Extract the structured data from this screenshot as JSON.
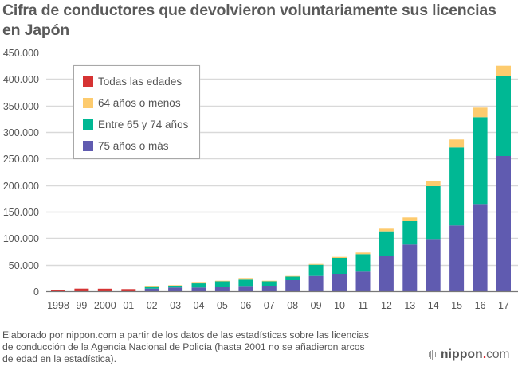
{
  "title": "Cifra de conductores que devolvieron voluntariamente sus licencias en Japón",
  "legend": [
    {
      "label": "Todas las edades",
      "color": "#d63333"
    },
    {
      "label": "64 años o menos",
      "color": "#fdcb6e"
    },
    {
      "label": "Entre 65 y 74 años",
      "color": "#00b894"
    },
    {
      "label": "75 años o más",
      "color": "#605bb0"
    }
  ],
  "source_note": "Elaborado por nippon.com a partir de los datos de las estadísticas sobre las licencias de conducción de la Agencia Nacional de Policía (hasta 2001 no se añadieron arcos de edad en la estadística).",
  "brand": {
    "name": "nippon",
    "dot": ".",
    "tld": "com"
  },
  "chart_data": {
    "type": "bar",
    "stacked": true,
    "title": "Cifra de conductores que devolvieron voluntariamente sus licencias en Japón",
    "xlabel": "",
    "ylabel": "",
    "ylim": [
      0,
      450000
    ],
    "yticks": [
      0,
      50000,
      100000,
      150000,
      200000,
      250000,
      300000,
      350000,
      400000,
      450000
    ],
    "ytick_labels": [
      "0",
      "50.000",
      "100.000",
      "150.000",
      "200.000",
      "250.000",
      "300.000",
      "350.000",
      "400.000",
      "450.000"
    ],
    "grid": true,
    "legend_position": "top-left",
    "categories": [
      "1998",
      "99",
      "2000",
      "01",
      "02",
      "03",
      "04",
      "05",
      "06",
      "07",
      "08",
      "09",
      "10",
      "11",
      "12",
      "13",
      "14",
      "15",
      "16",
      "17"
    ],
    "series": [
      {
        "name": "Todas las edades",
        "color": "#d63333",
        "values": [
          2600,
          5000,
          4800,
          4100,
          0,
          0,
          0,
          0,
          0,
          0,
          0,
          0,
          0,
          0,
          0,
          0,
          0,
          0,
          0,
          0
        ]
      },
      {
        "name": "75 años o más",
        "color": "#605bb0",
        "values": [
          0,
          0,
          0,
          0,
          5000,
          7000,
          7000,
          7500,
          8500,
          10000,
          21000,
          29000,
          33000,
          37000,
          66000,
          88000,
          97000,
          124000,
          163000,
          255000
        ]
      },
      {
        "name": "Entre 65 y 74 años",
        "color": "#00b894",
        "values": [
          0,
          0,
          0,
          0,
          3000,
          3500,
          8000,
          11500,
          13500,
          9000,
          7000,
          21000,
          30000,
          33000,
          47000,
          44000,
          101000,
          147000,
          165000,
          150000
        ]
      },
      {
        "name": "64 años o menos",
        "color": "#fdcb6e",
        "values": [
          0,
          0,
          0,
          0,
          1000,
          1000,
          1000,
          1000,
          1500,
          1000,
          1000,
          1500,
          2000,
          3000,
          5000,
          7000,
          10000,
          15000,
          18000,
          20000
        ]
      }
    ]
  }
}
